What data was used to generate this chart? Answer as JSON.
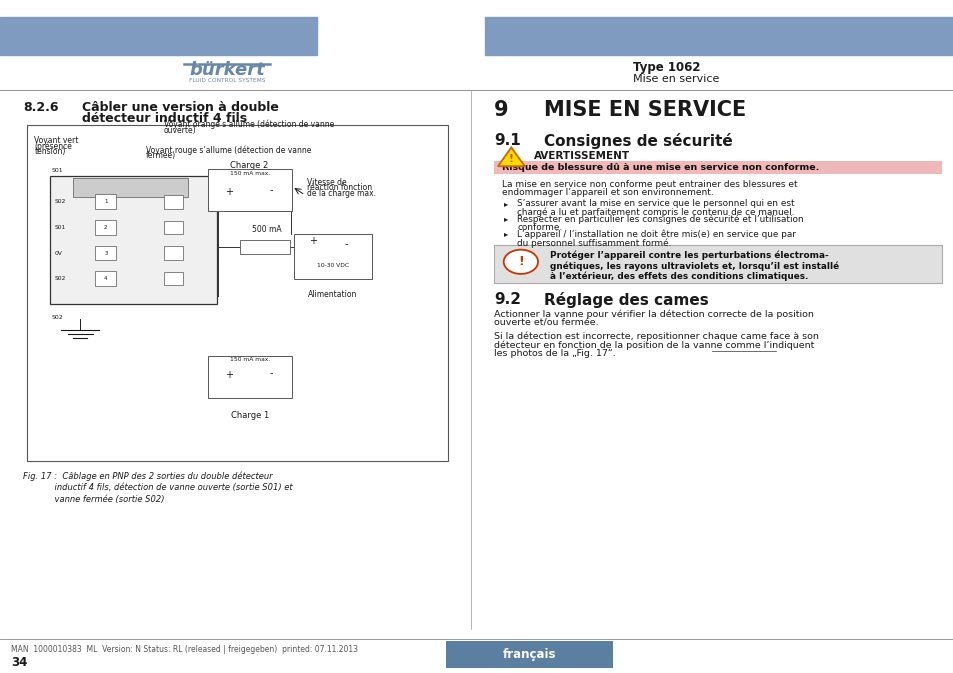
{
  "page_bg": "#ffffff",
  "header_bar_color": "#7f9bbf",
  "type_label": "Type 1062",
  "type_sub": "Mise en service",
  "section826": "8.2.6",
  "section826_title1": "Câbler une version à double",
  "section826_title2": "détecteur inductif 4 fils",
  "section9_num": "9",
  "section9_title": "MISE EN SERVICE",
  "section91_num": "9.1",
  "section91_title": "Consignes de sécurité",
  "avert_label": "AVERTISSEMENT",
  "avert_risk": "Risque de blessure dû à une mise en service non conforme.",
  "avert_body1": "La mise en service non conforme peut entrainer des blessures et",
  "avert_body2": "endommager l’appareil et son environnement.",
  "bullet1_l1": "S’assurer avant la mise en service que le personnel qui en est",
  "bullet1_l2": "chargé a lu et parfaitement compris le contenu de ce manuel.",
  "bullet2_l1": "Respecter en particulier les consignes de sécurité et l’utilisation",
  "bullet2_l2": "conforme.",
  "bullet3_l1": "L’appareil / l’installation ne doit être mis(e) en service que par",
  "bullet3_l2": "du personnel suffisamment formé.",
  "note_l1": "Protéger l’appareil contre les perturbations électroma-",
  "note_l2": "gnétiques, les rayons ultraviolets et, lorsqu’il est installé",
  "note_l3": "à l’extérieur, des effets des conditions climatiques.",
  "section92_num": "9.2",
  "section92_title": "Réglage des cames",
  "body92_1a": "Actionner la vanne pour vérifier la détection correcte de la position",
  "body92_1b": "ouverte et/ou fermée.",
  "body92_2a": "Si la détection est incorrecte, repositionner chaque came face à son",
  "body92_2b": "détecteur en fonction de la position de la vanne comme l’indiquent",
  "body92_2c": "les photos de la „Fig. 17“.",
  "fig_cap1": "Fig. 17 :  Câblage en PNP des 2 sorties du double détecteur",
  "fig_cap2": "            inductif 4 fils, détection de vanne ouverte (sortie S01) et",
  "fig_cap3": "            vanne fermée (sortie S02)",
  "footer_left": "MAN  1000010383  ML  Version: N Status: RL (released | freigegeben)  printed: 07.11.2013",
  "footer_pagenum": "34",
  "footer_lang": "français",
  "footer_lang_bg": "#5a7fa0",
  "warning_bg": "#f0b8b8",
  "note_bg": "#e0e0e0",
  "divider_color": "#999999",
  "text_color": "#1a1a1a",
  "charge2_label": "Charge 2",
  "charge1_label": "Charge 1",
  "mA_label": "150 mA max.",
  "mA500_label": "500 mA",
  "vdc_label": "10-30 VDC",
  "alim_label": "Alimentation",
  "vitesse_l1": "Vitesse de",
  "vitesse_l2": "réaction fonction",
  "vitesse_l3": "de la charge max.",
  "voyant_orange_l1": "Voyant orange s’allume (détection de vanne",
  "voyant_orange_l2": "ouverte)",
  "voyant_vert_l1": "Voyant vert",
  "voyant_vert_l2": "(présence",
  "voyant_vert_l3": "tension)",
  "voyant_rouge_l1": "Voyant rouge s’allume (détection de vanne",
  "voyant_rouge_l2": "fermée)"
}
